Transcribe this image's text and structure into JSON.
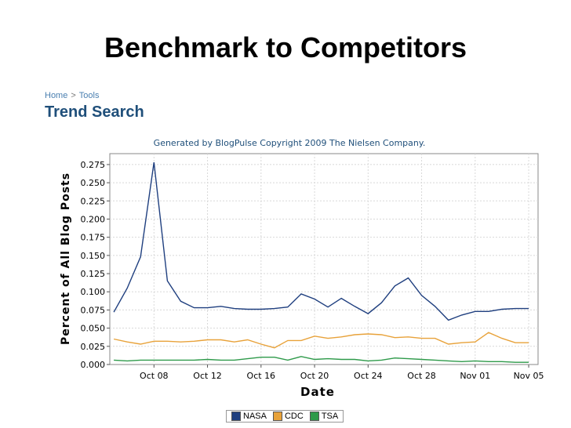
{
  "slide": {
    "title": "Benchmark to Competitors"
  },
  "breadcrumb": {
    "home": "Home",
    "separator": ">",
    "tools": "Tools"
  },
  "section_title": "Trend Search",
  "chart_data": {
    "type": "line",
    "title": "Generated by BlogPulse Copyright 2009 The Nielsen Company.",
    "xlabel": "Date",
    "ylabel": "Percent of All Blog Posts",
    "x": [
      "Oct 05",
      "Oct 06",
      "Oct 07",
      "Oct 08",
      "Oct 09",
      "Oct 10",
      "Oct 11",
      "Oct 12",
      "Oct 13",
      "Oct 14",
      "Oct 15",
      "Oct 16",
      "Oct 17",
      "Oct 18",
      "Oct 19",
      "Oct 20",
      "Oct 21",
      "Oct 22",
      "Oct 23",
      "Oct 24",
      "Oct 25",
      "Oct 26",
      "Oct 27",
      "Oct 28",
      "Oct 29",
      "Oct 30",
      "Oct 31",
      "Nov 01",
      "Nov 02",
      "Nov 03",
      "Nov 04",
      "Nov 05"
    ],
    "xticks": [
      "Oct 08",
      "Oct 12",
      "Oct 16",
      "Oct 20",
      "Oct 24",
      "Oct 28",
      "Nov 01",
      "Nov 05"
    ],
    "yticks": [
      "0.000",
      "0.025",
      "0.050",
      "0.075",
      "0.100",
      "0.125",
      "0.150",
      "0.175",
      "0.200",
      "0.225",
      "0.250",
      "0.275"
    ],
    "ylim": [
      0,
      0.29
    ],
    "grid": true,
    "legend_position": "bottom",
    "series": [
      {
        "name": "NASA",
        "color": "#1f3f7f",
        "values": [
          0.072,
          0.105,
          0.148,
          0.278,
          0.115,
          0.087,
          0.078,
          0.078,
          0.08,
          0.077,
          0.076,
          0.076,
          0.077,
          0.079,
          0.097,
          0.09,
          0.079,
          0.091,
          0.08,
          0.07,
          0.085,
          0.108,
          0.119,
          0.095,
          0.08,
          0.061,
          0.068,
          0.073,
          0.073,
          0.076,
          0.077,
          0.077
        ]
      },
      {
        "name": "CDC",
        "color": "#e8a23a",
        "values": [
          0.035,
          0.031,
          0.028,
          0.032,
          0.032,
          0.031,
          0.032,
          0.034,
          0.034,
          0.031,
          0.034,
          0.028,
          0.023,
          0.033,
          0.033,
          0.039,
          0.036,
          0.038,
          0.041,
          0.042,
          0.041,
          0.037,
          0.038,
          0.036,
          0.036,
          0.028,
          0.03,
          0.031,
          0.044,
          0.036,
          0.03,
          0.03
        ]
      },
      {
        "name": "TSA",
        "color": "#2e9a4a",
        "values": [
          0.006,
          0.005,
          0.006,
          0.006,
          0.006,
          0.006,
          0.006,
          0.007,
          0.006,
          0.006,
          0.008,
          0.01,
          0.01,
          0.006,
          0.011,
          0.007,
          0.008,
          0.007,
          0.007,
          0.005,
          0.006,
          0.009,
          0.008,
          0.007,
          0.006,
          0.005,
          0.004,
          0.005,
          0.004,
          0.004,
          0.003,
          0.003
        ]
      }
    ]
  }
}
